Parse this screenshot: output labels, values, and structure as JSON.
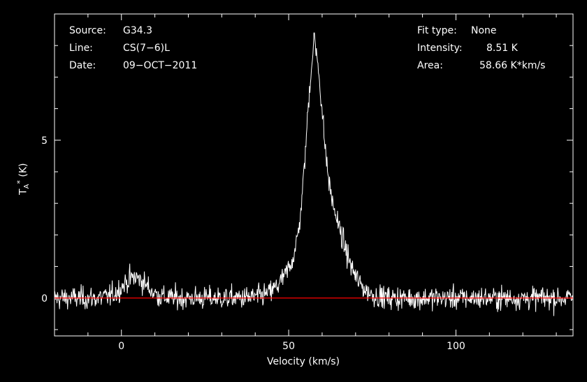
{
  "chart_data": {
    "type": "line",
    "xlabel": "Velocity (km/s)",
    "ylabel_main": "T",
    "ylabel_sub": "A",
    "ylabel_sup": "*",
    "ylabel_unit": "(K)",
    "xlim": [
      -20,
      135
    ],
    "ylim": [
      -1.2,
      9.0
    ],
    "xticks": [
      0,
      50,
      100
    ],
    "xtick_labels": [
      "0",
      "50",
      "100"
    ],
    "yticks": [
      0,
      5
    ],
    "ytick_labels": [
      "0",
      "5"
    ],
    "baseline": 0,
    "baseline_color": "#ff0000",
    "line_color": "#ffffff",
    "noise_rms": 0.18,
    "components": [
      {
        "kind": "gaussian",
        "center": 57.6,
        "amplitude": 5.0,
        "sigma": 2.2
      },
      {
        "kind": "gaussian",
        "center": 59.0,
        "amplitude": 2.4,
        "sigma": 6.5
      },
      {
        "kind": "gaussian",
        "center": 62.0,
        "amplitude": 0.9,
        "sigma": 4.0
      },
      {
        "kind": "gaussian",
        "center": 4.0,
        "amplitude": 0.65,
        "sigma": 3.5
      }
    ],
    "peak": {
      "x": 57.6,
      "y": 8.4
    },
    "channel_width": 0.15
  },
  "header": {
    "source_label": "Source:",
    "source_value": "G34.3",
    "line_label": "Line:",
    "line_value": "CS(7−6)L",
    "date_label": "Date:",
    "date_value": "09−OCT−2011",
    "fit_label": "Fit type:",
    "fit_value": "None",
    "intensity_label": "Intensity:",
    "intensity_value": "8.51 K",
    "area_label": "Area:",
    "area_value": "58.66 K*km/s"
  }
}
